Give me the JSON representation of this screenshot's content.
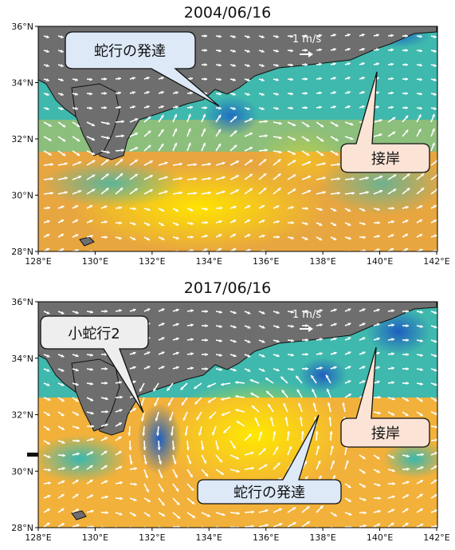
{
  "panels": [
    {
      "title": "2004/06/16",
      "scale_label": "1 m/s",
      "callouts": [
        {
          "id": "meander",
          "text": "蛇行の発達",
          "style": "blue"
        },
        {
          "id": "contact",
          "text": "接岸",
          "style": "peach"
        }
      ]
    },
    {
      "title": "2017/06/16",
      "scale_label": "1 m/s",
      "callouts": [
        {
          "id": "small",
          "text": "小蛇行2",
          "style": "gray"
        },
        {
          "id": "contact",
          "text": "接岸",
          "style": "peach"
        },
        {
          "id": "meander",
          "text": "蛇行の発達",
          "style": "blue"
        }
      ]
    }
  ],
  "axes": {
    "x_ticks": [
      "128°E",
      "130°E",
      "132°E",
      "134°E",
      "136°E",
      "138°E",
      "140°E",
      "142°E"
    ],
    "y_ticks": [
      "28°N",
      "30°N",
      "32°N",
      "34°N",
      "36°N"
    ]
  },
  "colors": {
    "land": "#6e6e6e",
    "warm": "#f2b13a",
    "mid": "#c8b860",
    "cool": "#3ab7b0",
    "cold": "#1f6fc0",
    "arrow": "#ffffff",
    "callout_blue": "#dde9f7",
    "callout_peach": "#fbe4d6",
    "callout_gray": "#eeeeee"
  }
}
